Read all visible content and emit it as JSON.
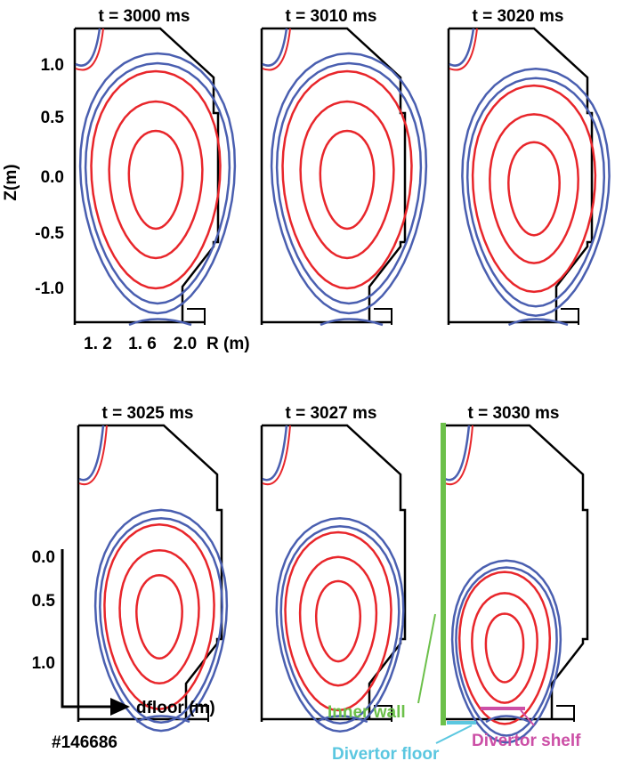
{
  "colors": {
    "red": "#e8262b",
    "blue": "#4a5fb0",
    "wall": "#000000",
    "inner_wall": "#6cc04a",
    "divertor_floor": "#5bc7e0",
    "divertor_shelf": "#cc4fa6"
  },
  "panels": [
    {
      "title": "t = 3000 ms"
    },
    {
      "title": "t = 3010 ms"
    },
    {
      "title": "t = 3020 ms"
    },
    {
      "title": "t = 3025 ms"
    },
    {
      "title": "t = 3027 ms"
    },
    {
      "title": "t = 3030 ms"
    }
  ],
  "top_axis": {
    "ylabel": "Z(m)",
    "yticks": [
      "1.0",
      "0.5",
      "0.0",
      "-0.5",
      "-1.0"
    ],
    "xticks": [
      "1. 2",
      "1. 6",
      "2.0"
    ],
    "xlabel": "R (m)"
  },
  "bottom_axis": {
    "yticks": [
      "0.0",
      "0.5",
      "1.0"
    ],
    "xlabel": "dfloor (m)"
  },
  "shot": "#146686",
  "annotations": {
    "inner_wall": "Inner wall",
    "divertor_floor": "Divertor floor",
    "divertor_shelf": "Divertor shelf"
  }
}
